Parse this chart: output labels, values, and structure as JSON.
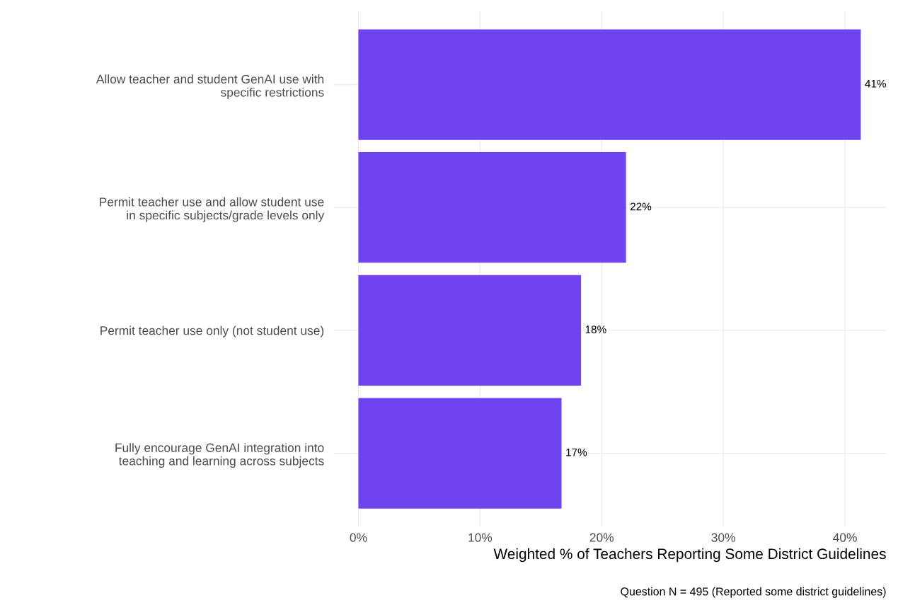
{
  "chart_data": {
    "type": "bar",
    "orientation": "horizontal",
    "categories": [
      "Allow teacher and student GenAI use with\nspecific restrictions",
      "Permit teacher use and allow student use\nin specific subjects/grade levels only",
      "Permit teacher use only (not student use)",
      "Fully encourage GenAI integration into\nteaching and learning across subjects"
    ],
    "values": [
      41.3,
      22.0,
      18.3,
      16.7
    ],
    "value_labels": [
      "41%",
      "22%",
      "18%",
      "17%"
    ],
    "color": "#7043f0",
    "xlabel": "Weighted % of Teachers Reporting Some District Guidelines",
    "annotations": [
      "Question N = 495 (Reported some district guidelines)"
    ],
    "xlim": [
      -2,
      43.4
    ],
    "xticks": [
      {
        "value": 0,
        "label": "0%"
      },
      {
        "value": 10,
        "label": "10%"
      },
      {
        "value": 20,
        "label": "20%"
      },
      {
        "value": 30,
        "label": "30%"
      },
      {
        "value": 40,
        "label": "40%"
      }
    ],
    "grid": true
  }
}
